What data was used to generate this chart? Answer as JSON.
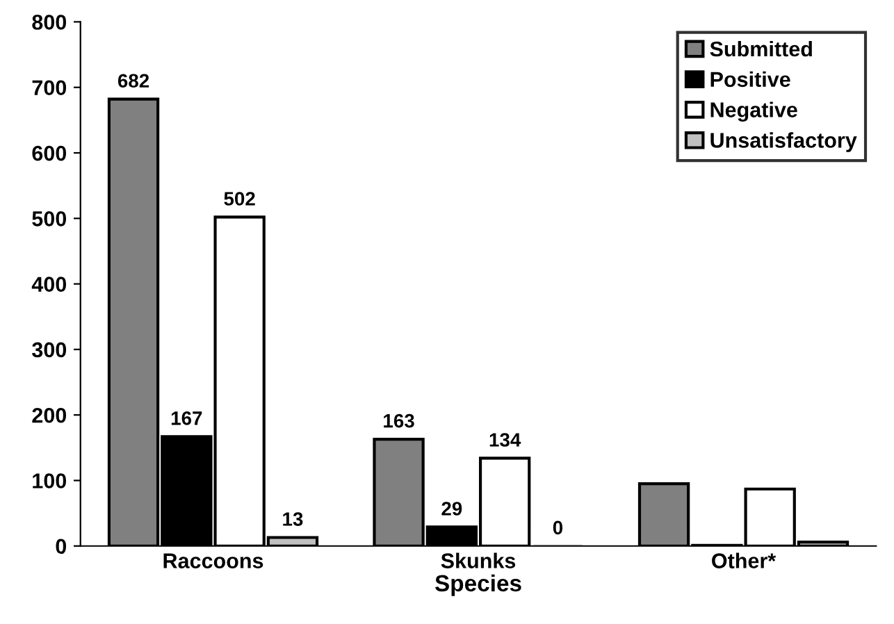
{
  "chart_data": {
    "type": "bar",
    "xlabel": "Species",
    "categories": [
      "Raccoons",
      "Skunks",
      "Other*"
    ],
    "series": [
      {
        "name": "Submitted",
        "color": "#808080",
        "values": [
          682,
          163,
          95
        ],
        "value_labels": [
          "682",
          "163",
          null
        ]
      },
      {
        "name": "Positive",
        "color": "#000000",
        "values": [
          167,
          29,
          1
        ],
        "value_labels": [
          "167",
          "29",
          null
        ]
      },
      {
        "name": "Negative",
        "color": "#ffffff",
        "values": [
          502,
          134,
          87
        ],
        "value_labels": [
          "502",
          "134",
          null
        ]
      },
      {
        "name": "Unsatisfactory",
        "color": "#c0c0c0",
        "values": [
          13,
          0,
          6
        ],
        "value_labels": [
          "13",
          "0",
          null
        ]
      }
    ],
    "ylim": [
      0,
      800
    ],
    "yticks": [
      0,
      100,
      200,
      300,
      400,
      500,
      600,
      700,
      800
    ],
    "legend": "top right",
    "grid": false
  }
}
